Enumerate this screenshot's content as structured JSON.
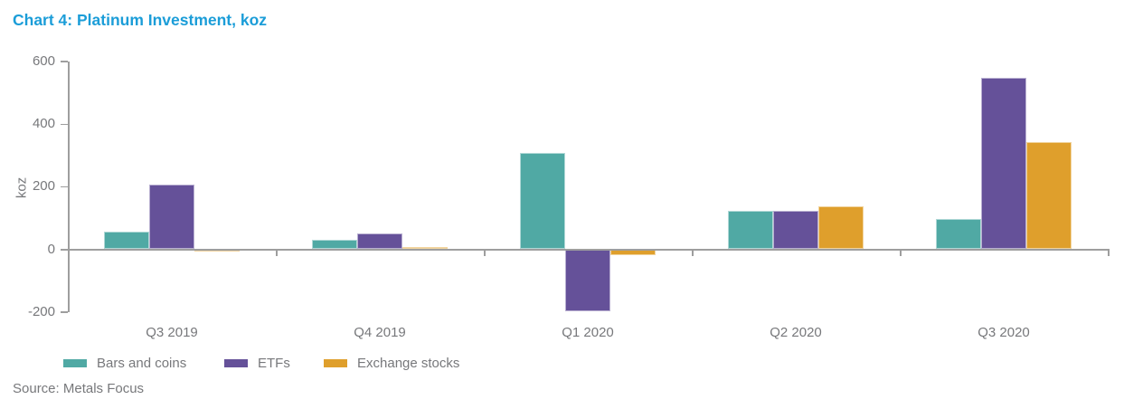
{
  "title": "Chart 4: Platinum Investment, koz",
  "source": "Source: Metals Focus",
  "colors": {
    "title_blue": "#1B9DD8",
    "axis_text_grey": "#77787B",
    "axis_line_grey": "#9E9E9E"
  },
  "chart_data": {
    "type": "bar",
    "categories": [
      "Q3 2019",
      "Q4 2019",
      "Q1 2020",
      "Q2 2020",
      "Q3 2020"
    ],
    "series": [
      {
        "name": "Bars and coins",
        "color": "#50A9A4",
        "values": [
          55,
          30,
          305,
          120,
          95
        ]
      },
      {
        "name": "ETFs",
        "color": "#655199",
        "values": [
          205,
          48,
          -200,
          122,
          545
        ]
      },
      {
        "name": "Exchange stocks",
        "color": "#DF9F2C",
        "values": [
          -10,
          5,
          -20,
          137,
          340
        ]
      }
    ],
    "title": "Chart 4: Platinum Investment, koz",
    "xlabel": "",
    "ylabel": "koz",
    "ylim": [
      -200,
      600
    ],
    "yticks": [
      600,
      400,
      200,
      0,
      -200
    ],
    "grid": false,
    "legend_position": "bottom"
  }
}
